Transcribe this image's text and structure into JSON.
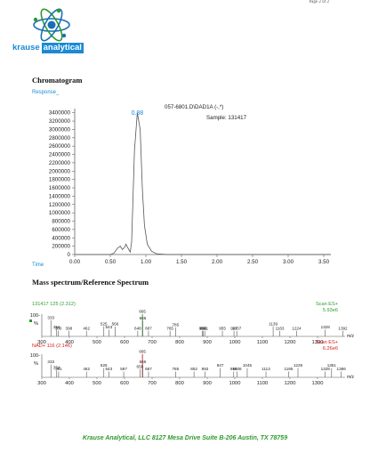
{
  "header": {
    "page": "Page 2 of 2",
    "logo_word1": "krause",
    "logo_word2": "analytical"
  },
  "chromatogram": {
    "section_title": "Chromatogram",
    "response_label": "Response_",
    "time_label": "Time",
    "file": "057-6801.D\\DAD1A (-,*)",
    "sample": "Sample:   131417",
    "peak_label": "0.88"
  },
  "mass": {
    "section_title": "Mass spectrum/Reference Spectrum",
    "top_title": "131417 125 (2.312)",
    "top_scan": "Scan ES+",
    "top_intensity": "5.93e6",
    "bottom_title": "NAD+ 116 (2.146)",
    "bottom_scan": "Scan ES+",
    "bottom_intensity": "6.26e6",
    "mz_label": "m/z"
  },
  "footer": {
    "text": "Krause Analytical, LLC   8127 Mesa Drive  Suite B-206   Austin, TX 78759"
  },
  "colors": {
    "accent_blue": "#1a8ad4",
    "trace": "#555555",
    "footer_green": "#2e9a2e",
    "spectrum_green": "#2e9a2e",
    "spectrum_red": "#d42020"
  },
  "chart_data": [
    {
      "type": "line",
      "name": "chromatogram",
      "xlim": [
        0,
        3.6
      ],
      "ylim": [
        0,
        3500000
      ],
      "x_ticks": [
        "0.00",
        "0.50",
        "1.00",
        "1.50",
        "2.00",
        "2.50",
        "3.00",
        "3.50"
      ],
      "y_ticks": [
        "0",
        "200000",
        "400000",
        "600000",
        "800000",
        "1000000",
        "1200000",
        "1400000",
        "1600000",
        "1800000",
        "2000000",
        "2200000",
        "2400000",
        "2600000",
        "2800000",
        "3000000",
        "3200000",
        "3400000"
      ],
      "points": [
        [
          0,
          0
        ],
        [
          0.5,
          0
        ],
        [
          0.55,
          30000
        ],
        [
          0.6,
          150000
        ],
        [
          0.64,
          200000
        ],
        [
          0.67,
          120000
        ],
        [
          0.7,
          170000
        ],
        [
          0.72,
          250000
        ],
        [
          0.75,
          150000
        ],
        [
          0.78,
          60000
        ],
        [
          0.8,
          300000
        ],
        [
          0.84,
          2500000
        ],
        [
          0.88,
          3400000
        ],
        [
          0.92,
          3000000
        ],
        [
          0.95,
          1600000
        ],
        [
          0.98,
          700000
        ],
        [
          1.02,
          250000
        ],
        [
          1.08,
          80000
        ],
        [
          1.15,
          20000
        ],
        [
          1.3,
          0
        ],
        [
          3.6,
          0
        ]
      ]
    },
    {
      "type": "bar",
      "name": "mass_spectrum_sample",
      "xlim": [
        300,
        1400
      ],
      "ylim": [
        0,
        100
      ],
      "x_ticks": [
        "300",
        "400",
        "500",
        "600",
        "700",
        "800",
        "900",
        "1000",
        "1100",
        "1200",
        "1300"
      ],
      "y_ticks": [
        "%",
        "100-"
      ],
      "peaks": [
        {
          "mz": 333,
          "rel": 72,
          "label": "333"
        },
        {
          "mz": 354,
          "rel": 30,
          "label": "354"
        },
        {
          "mz": 360,
          "rel": 25,
          "label": "360"
        },
        {
          "mz": 398,
          "rel": 25,
          "label": "398"
        },
        {
          "mz": 462,
          "rel": 25,
          "label": "462"
        },
        {
          "mz": 525,
          "rel": 45,
          "label": "525"
        },
        {
          "mz": 543,
          "rel": 30,
          "label": "543"
        },
        {
          "mz": 566,
          "rel": 45,
          "label": "566"
        },
        {
          "mz": 648,
          "rel": 25,
          "label": "648"
        },
        {
          "mz": 665,
          "rel": 100,
          "label": "665"
        },
        {
          "mz": 666,
          "rel": 70,
          "label": "666"
        },
        {
          "mz": 687,
          "rel": 25,
          "label": "687"
        },
        {
          "mz": 765,
          "rel": 25,
          "label": "765"
        },
        {
          "mz": 785,
          "rel": 40,
          "label": "785"
        },
        {
          "mz": 882,
          "rel": 25,
          "label": "882"
        },
        {
          "mz": 886,
          "rel": 25,
          "label": "886"
        },
        {
          "mz": 891,
          "rel": 25,
          "label": "891"
        },
        {
          "mz": 955,
          "rel": 25,
          "label": "955"
        },
        {
          "mz": 997,
          "rel": 25,
          "label": "997"
        },
        {
          "mz": 1007,
          "rel": 25,
          "label": "1007"
        },
        {
          "mz": 1139,
          "rel": 45,
          "label": "1139"
        },
        {
          "mz": 1163,
          "rel": 25,
          "label": "1163"
        },
        {
          "mz": 1224,
          "rel": 25,
          "label": "1224"
        },
        {
          "mz": 1328,
          "rel": 30,
          "label": "1328"
        },
        {
          "mz": 1392,
          "rel": 25,
          "label": "1392"
        }
      ]
    },
    {
      "type": "bar",
      "name": "mass_spectrum_reference",
      "xlim": [
        300,
        1400
      ],
      "ylim": [
        0,
        100
      ],
      "x_ticks": [
        "300",
        "400",
        "500",
        "600",
        "700",
        "800",
        "900",
        "1000",
        "1100",
        "1200",
        "1300"
      ],
      "y_ticks": [
        "%",
        "100-"
      ],
      "peaks": [
        {
          "mz": 333,
          "rel": 55,
          "label": "333"
        },
        {
          "mz": 354,
          "rel": 30,
          "label": "354"
        },
        {
          "mz": 361,
          "rel": 25,
          "label": "361"
        },
        {
          "mz": 462,
          "rel": 25,
          "label": "462"
        },
        {
          "mz": 525,
          "rel": 40,
          "label": "525"
        },
        {
          "mz": 543,
          "rel": 25,
          "label": "543"
        },
        {
          "mz": 597,
          "rel": 25,
          "label": "597"
        },
        {
          "mz": 656,
          "rel": 35,
          "label": "656"
        },
        {
          "mz": 665,
          "rel": 100,
          "label": "665"
        },
        {
          "mz": 666,
          "rel": 55,
          "label": "666"
        },
        {
          "mz": 687,
          "rel": 25,
          "label": "687"
        },
        {
          "mz": 785,
          "rel": 25,
          "label": "785"
        },
        {
          "mz": 852,
          "rel": 25,
          "label": "852"
        },
        {
          "mz": 892,
          "rel": 25,
          "label": "892"
        },
        {
          "mz": 947,
          "rel": 40,
          "label": "947"
        },
        {
          "mz": 996,
          "rel": 25,
          "label": "996"
        },
        {
          "mz": 1008,
          "rel": 25,
          "label": "1008"
        },
        {
          "mz": 1045,
          "rel": 40,
          "label": "1045"
        },
        {
          "mz": 1113,
          "rel": 25,
          "label": "1113"
        },
        {
          "mz": 1195,
          "rel": 25,
          "label": "1195"
        },
        {
          "mz": 1229,
          "rel": 40,
          "label": "1229"
        },
        {
          "mz": 1328,
          "rel": 25,
          "label": "1328"
        },
        {
          "mz": 1351,
          "rel": 40,
          "label": "1351"
        },
        {
          "mz": 1386,
          "rel": 25,
          "label": "1386"
        }
      ]
    }
  ]
}
